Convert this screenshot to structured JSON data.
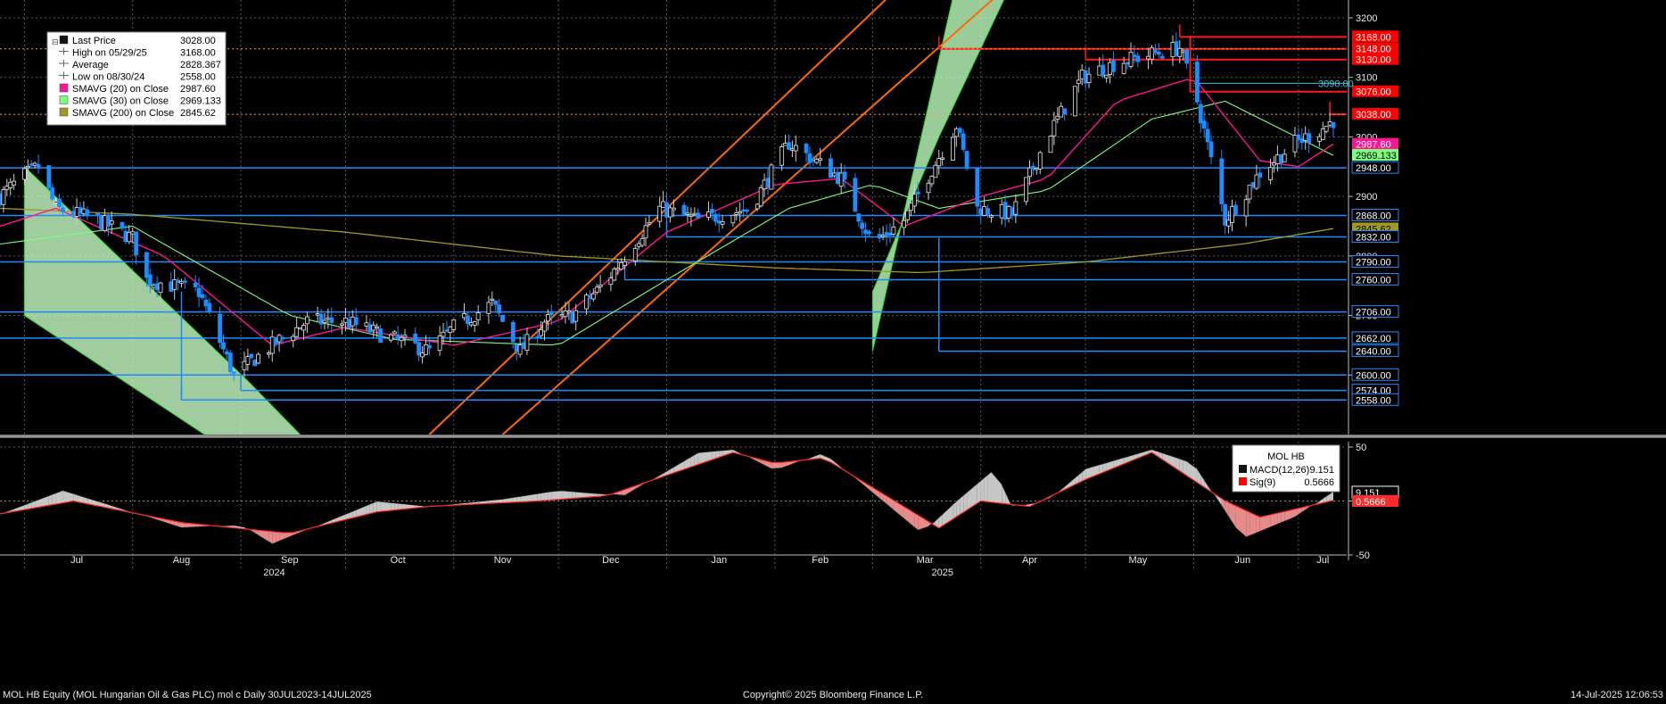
{
  "footer": {
    "left": "MOL HB Equity (MOL Hungarian Oil & Gas PLC) mol c  Daily 30JUL2023-14JUL2025",
    "center": "Copyright© 2025 Bloomberg Finance L.P.",
    "right": "14-Jul-2025 12:06:53"
  },
  "colors": {
    "background": "#000000",
    "grid": "#5a5a5a",
    "up_candle": "#ffffff",
    "down_candle": "#1e8cff",
    "sma20": "#ff1493",
    "sma30": "#7cff7c",
    "sma200": "#a09a22",
    "support_line": "#1e8cff",
    "resistance_line": "#ff1a1a",
    "channel_down_fill": "#c8ffc8",
    "channel_up_fill": "#bfffbf",
    "trend_orange": "#ff6a00",
    "macd_line": "#111111",
    "signal_line": "#ff2a2a"
  },
  "chart_data": [
    {
      "type": "candlestick",
      "panel": "price",
      "ylim": [
        2500,
        3230
      ],
      "y_ticks": [
        2600,
        2700,
        2800,
        2900,
        3000,
        3100,
        3200
      ],
      "x_months": [
        "Jul",
        "Aug",
        "Sep",
        "Oct",
        "Nov",
        "Dec",
        "Jan",
        "Feb",
        "Mar",
        "Apr",
        "May",
        "Jun",
        "Jul"
      ],
      "x_years": [
        "2024",
        "2025"
      ],
      "grid": true,
      "legend_placement": "top-left",
      "legend": [
        {
          "label": "Last Price",
          "value": "3028.00",
          "marker": "black-square"
        },
        {
          "label": "High on 05/29/25",
          "value": "3168.00",
          "marker": "high-mark"
        },
        {
          "label": "Average",
          "value": "2828.367",
          "marker": "avg-mark"
        },
        {
          "label": "Low on 08/30/24",
          "value": "2558.00",
          "marker": "low-mark"
        },
        {
          "label": "SMAVG (20)  on Close",
          "value": "2987.60",
          "marker": "pink-square"
        },
        {
          "label": "SMAVG (30)  on Close",
          "value": "2969.133",
          "marker": "green-square"
        },
        {
          "label": "SMAVG (200)  on Close",
          "value": "2845.62",
          "marker": "olive-square"
        }
      ],
      "price_labels": [
        {
          "text": "3168.00",
          "value": 3168,
          "style": "red"
        },
        {
          "text": "3148.00",
          "value": 3148,
          "style": "red"
        },
        {
          "text": "3130.00",
          "value": 3130,
          "style": "red"
        },
        {
          "text": "3076.00",
          "value": 3076,
          "style": "red"
        },
        {
          "text": "3038.00",
          "value": 3038,
          "style": "red"
        },
        {
          "text": "2987.60",
          "value": 2987.6,
          "style": "pink"
        },
        {
          "text": "2969.133",
          "value": 2969.133,
          "style": "green"
        },
        {
          "text": "2948.00",
          "value": 2948,
          "style": "blue"
        },
        {
          "text": "2868.00",
          "value": 2868,
          "style": "blue"
        },
        {
          "text": "2845.62",
          "value": 2845.62,
          "style": "olive"
        },
        {
          "text": "2832.00",
          "value": 2832,
          "style": "blue"
        },
        {
          "text": "2790.00",
          "value": 2790,
          "style": "blue"
        },
        {
          "text": "2760.00",
          "value": 2760,
          "style": "blue"
        },
        {
          "text": "2706.00",
          "value": 2706,
          "style": "blue"
        },
        {
          "text": "2662.00",
          "value": 2662,
          "style": "blue"
        },
        {
          "text": "2640.00",
          "value": 2640,
          "style": "blue"
        },
        {
          "text": "2600.00",
          "value": 2600,
          "style": "blue"
        },
        {
          "text": "2574.00",
          "value": 2574,
          "style": "blue"
        },
        {
          "text": "2558.00",
          "value": 2558,
          "style": "blue"
        }
      ],
      "inline_label": {
        "text": "3090.00",
        "value": 3090
      },
      "horizontal_lines": [
        {
          "value": 2948,
          "color": "blue"
        },
        {
          "value": 2868,
          "color": "blue"
        },
        {
          "value": 2832,
          "color": "blue",
          "from": "2025-01-01"
        },
        {
          "value": 2790,
          "color": "blue"
        },
        {
          "value": 2760,
          "color": "blue",
          "from": "2024-12-20"
        },
        {
          "value": 2706,
          "color": "blue"
        },
        {
          "value": 2662,
          "color": "blue"
        },
        {
          "value": 2640,
          "color": "blue",
          "from": "2025-03-20"
        },
        {
          "value": 2600,
          "color": "blue"
        },
        {
          "value": 2574,
          "color": "blue",
          "from": "2024-09-01"
        },
        {
          "value": 2558,
          "color": "blue",
          "from": "2024-08-15"
        },
        {
          "value": 3148,
          "color": "red",
          "from": "2025-03-20"
        },
        {
          "value": 3130,
          "color": "red",
          "from": "2025-05-01"
        },
        {
          "value": 3168,
          "color": "red",
          "from": "2025-05-28"
        },
        {
          "value": 3076,
          "color": "red",
          "from": "2025-05-31"
        },
        {
          "value": 3038,
          "color": "red",
          "from": "2025-07-10"
        },
        {
          "value": 3148,
          "color": "orange-dotted"
        },
        {
          "value": 3038,
          "color": "orange-dotted"
        },
        {
          "value": 3090,
          "color": "cyan",
          "from": "2025-06-01"
        }
      ],
      "ohlc_anchors": [
        [
          "2024-06-24",
          2900
        ],
        [
          "2024-07-01",
          2935
        ],
        [
          "2024-07-05",
          2950
        ],
        [
          "2024-07-10",
          2880
        ],
        [
          "2024-07-22",
          2860
        ],
        [
          "2024-08-01",
          2830
        ],
        [
          "2024-08-05",
          2760
        ],
        [
          "2024-08-20",
          2740
        ],
        [
          "2024-08-30",
          2600
        ],
        [
          "2024-09-10",
          2650
        ],
        [
          "2024-09-20",
          2690
        ],
        [
          "2024-10-01",
          2690
        ],
        [
          "2024-10-15",
          2660
        ],
        [
          "2024-10-25",
          2640
        ],
        [
          "2024-11-01",
          2680
        ],
        [
          "2024-11-12",
          2720
        ],
        [
          "2024-11-20",
          2640
        ],
        [
          "2024-11-27",
          2690
        ],
        [
          "2024-12-05",
          2700
        ],
        [
          "2024-12-15",
          2760
        ],
        [
          "2024-12-30",
          2880
        ],
        [
          "2025-01-10",
          2860
        ],
        [
          "2025-01-25",
          2880
        ],
        [
          "2025-02-05",
          2990
        ],
        [
          "2025-02-20",
          2930
        ],
        [
          "2025-03-01",
          2820
        ],
        [
          "2025-03-10",
          2860
        ],
        [
          "2025-03-25",
          3020
        ],
        [
          "2025-03-31",
          2880
        ],
        [
          "2025-04-10",
          2870
        ],
        [
          "2025-04-20",
          3000
        ],
        [
          "2025-04-30",
          3100
        ],
        [
          "2025-05-10",
          3125
        ],
        [
          "2025-05-28",
          3150
        ],
        [
          "2025-06-02",
          3060
        ],
        [
          "2025-06-10",
          2860
        ],
        [
          "2025-06-20",
          2940
        ],
        [
          "2025-06-30",
          2990
        ],
        [
          "2025-07-07",
          3010
        ],
        [
          "2025-07-11",
          3028
        ]
      ],
      "sma20_anchors": [
        [
          "2024-06-24",
          2850
        ],
        [
          "2024-07-10",
          2880
        ],
        [
          "2024-08-10",
          2800
        ],
        [
          "2024-09-10",
          2650
        ],
        [
          "2024-10-01",
          2680
        ],
        [
          "2024-11-01",
          2650
        ],
        [
          "2024-12-01",
          2690
        ],
        [
          "2025-01-01",
          2840
        ],
        [
          "2025-02-01",
          2920
        ],
        [
          "2025-02-20",
          2930
        ],
        [
          "2025-03-10",
          2850
        ],
        [
          "2025-04-01",
          2900
        ],
        [
          "2025-04-20",
          2930
        ],
        [
          "2025-05-10",
          3060
        ],
        [
          "2025-06-01",
          3100
        ],
        [
          "2025-06-20",
          2960
        ],
        [
          "2025-07-01",
          2950
        ],
        [
          "2025-07-11",
          2988
        ]
      ],
      "sma30_anchors": [
        [
          "2024-06-24",
          2820
        ],
        [
          "2024-08-01",
          2850
        ],
        [
          "2024-09-15",
          2700
        ],
        [
          "2024-10-15",
          2660
        ],
        [
          "2024-12-01",
          2650
        ],
        [
          "2025-01-01",
          2760
        ],
        [
          "2025-02-05",
          2880
        ],
        [
          "2025-03-01",
          2920
        ],
        [
          "2025-03-20",
          2880
        ],
        [
          "2025-04-20",
          2910
        ],
        [
          "2025-05-20",
          3030
        ],
        [
          "2025-06-10",
          3060
        ],
        [
          "2025-07-11",
          2969
        ]
      ],
      "sma200_anchors": [
        [
          "2024-06-24",
          2880
        ],
        [
          "2024-08-01",
          2870
        ],
        [
          "2024-10-01",
          2840
        ],
        [
          "2024-12-01",
          2800
        ],
        [
          "2025-02-01",
          2780
        ],
        [
          "2025-03-15",
          2772
        ],
        [
          "2025-05-01",
          2790
        ],
        [
          "2025-06-15",
          2820
        ],
        [
          "2025-07-11",
          2846
        ]
      ],
      "channels": [
        {
          "kind": "down",
          "points": [
            [
              "2024-07-01",
              2950
            ],
            [
              "2024-09-03",
              2590
            ],
            [
              "2024-11-07",
              2200
            ],
            [
              "2024-07-01",
              2700
            ]
          ]
        },
        {
          "kind": "up",
          "points": [
            [
              "2025-03-01",
              2740
            ],
            [
              "2025-03-20",
              3000
            ],
            [
              "2025-04-10",
              3260
            ],
            [
              "2025-03-25",
              3260
            ],
            [
              "2025-03-01",
              2640
            ]
          ]
        }
      ],
      "trend_lines": [
        {
          "from": [
            "2024-10-25",
            2500
          ],
          "to": [
            "2025-03-10",
            3260
          ]
        },
        {
          "from": [
            "2024-11-15",
            2500
          ],
          "to": [
            "2025-04-10",
            3260
          ]
        }
      ]
    },
    {
      "type": "area",
      "panel": "macd",
      "title": "MOL HB",
      "ylim": [
        -55,
        55
      ],
      "y_ticks": [
        -50,
        0,
        50
      ],
      "legend_placement": "top-right",
      "legend": [
        {
          "label": "MACD(12,26)",
          "value": "9.151"
        },
        {
          "label": "Sig(9)",
          "value": "0.5666"
        }
      ],
      "value_labels": [
        {
          "text": "9.151",
          "value": 9.151,
          "style": "black"
        },
        {
          "text": "0.5666",
          "value": 0.5666,
          "style": "red"
        }
      ],
      "macd_anchors": [
        [
          "2024-06-24",
          -12
        ],
        [
          "2024-07-12",
          10
        ],
        [
          "2024-07-25",
          -3
        ],
        [
          "2024-08-15",
          -25
        ],
        [
          "2024-09-01",
          -22
        ],
        [
          "2024-09-10",
          -40
        ],
        [
          "2024-09-25",
          -20
        ],
        [
          "2024-10-10",
          0
        ],
        [
          "2024-10-25",
          -5
        ],
        [
          "2024-11-15",
          2
        ],
        [
          "2024-12-01",
          10
        ],
        [
          "2024-12-20",
          5
        ],
        [
          "2025-01-10",
          45
        ],
        [
          "2025-01-20",
          48
        ],
        [
          "2025-02-01",
          28
        ],
        [
          "2025-02-15",
          45
        ],
        [
          "2025-03-15",
          -30
        ],
        [
          "2025-03-25",
          0
        ],
        [
          "2025-04-05",
          30
        ],
        [
          "2025-04-10",
          -5
        ],
        [
          "2025-04-20",
          0
        ],
        [
          "2025-05-01",
          30
        ],
        [
          "2025-05-20",
          48
        ],
        [
          "2025-06-01",
          35
        ],
        [
          "2025-06-15",
          -35
        ],
        [
          "2025-06-30",
          -15
        ],
        [
          "2025-07-11",
          9.151
        ]
      ],
      "signal_anchors": [
        [
          "2024-06-24",
          -12
        ],
        [
          "2024-07-15",
          0
        ],
        [
          "2024-08-15",
          -20
        ],
        [
          "2024-09-15",
          -30
        ],
        [
          "2024-10-10",
          -10
        ],
        [
          "2024-10-25",
          -5
        ],
        [
          "2024-11-25",
          0
        ],
        [
          "2024-12-15",
          5
        ],
        [
          "2025-01-20",
          45
        ],
        [
          "2025-02-01",
          35
        ],
        [
          "2025-02-15",
          40
        ],
        [
          "2025-03-20",
          -25
        ],
        [
          "2025-04-01",
          0
        ],
        [
          "2025-04-15",
          -5
        ],
        [
          "2025-05-01",
          20
        ],
        [
          "2025-05-20",
          45
        ],
        [
          "2025-06-10",
          0
        ],
        [
          "2025-06-20",
          -15
        ],
        [
          "2025-07-11",
          0.5666
        ]
      ]
    }
  ]
}
